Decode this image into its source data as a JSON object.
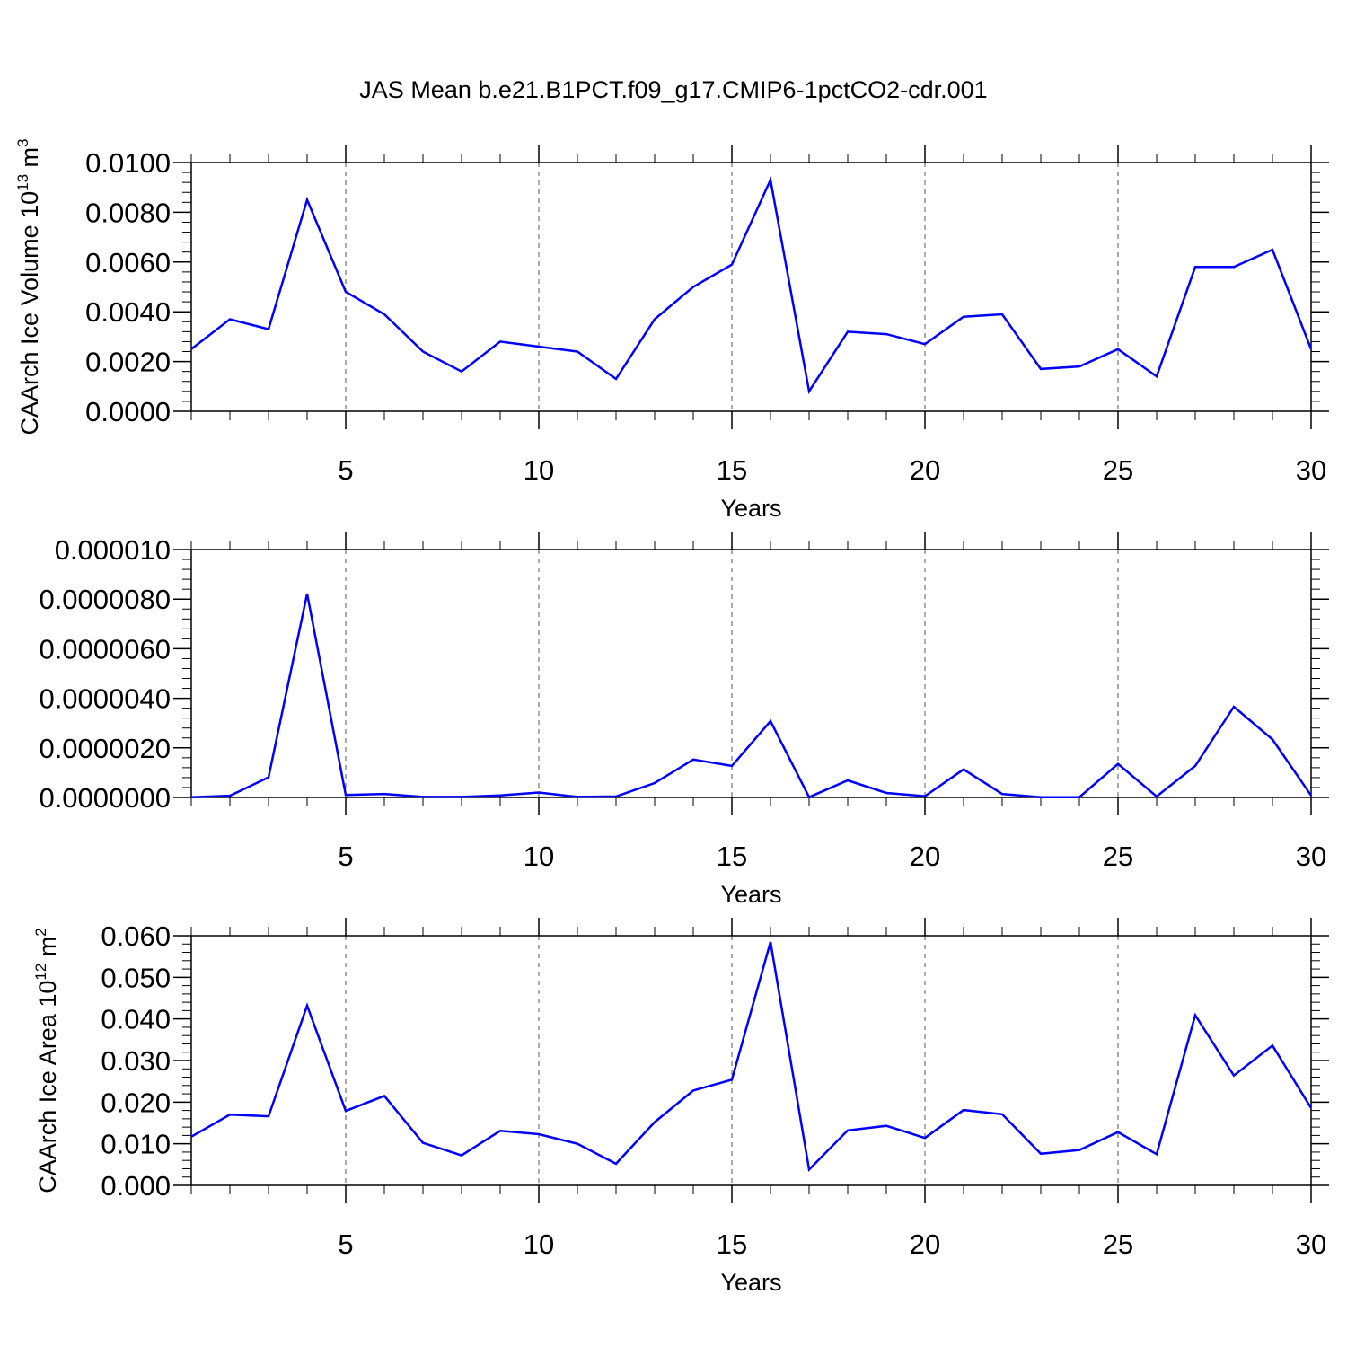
{
  "title": "JAS Mean b.e21.B1PCT.f09_g17.CMIP6-1pctCO2-cdr.001",
  "line_color": "#0000ff",
  "chart_data": [
    {
      "type": "line",
      "title": "JAS Mean b.e21.B1PCT.f09_g17.CMIP6-1pctCO2-cdr.001",
      "xlabel": "Years",
      "ylabel": "CAArch Ice Volume 10",
      "ylabel_exponent": "13",
      "ylabel_unit": "m",
      "ylabel_unit_exponent": "3",
      "xlim": [
        1,
        30
      ],
      "ylim": [
        0,
        0.01
      ],
      "x_ticks": [
        5,
        10,
        15,
        20,
        25,
        30
      ],
      "y_ticks": [
        "0.0000",
        "0.0020",
        "0.0040",
        "0.0060",
        "0.0080",
        "0.0100"
      ],
      "grid": "vertical dashed at x ticks",
      "x": [
        1,
        2,
        3,
        4,
        5,
        6,
        7,
        8,
        9,
        10,
        11,
        12,
        13,
        14,
        15,
        16,
        17,
        18,
        19,
        20,
        21,
        22,
        23,
        24,
        25,
        26,
        27,
        28,
        29,
        30
      ],
      "values": [
        0.0025,
        0.0037,
        0.0033,
        0.0085,
        0.0048,
        0.0039,
        0.0024,
        0.0016,
        0.0028,
        0.0026,
        0.0024,
        0.0013,
        0.0037,
        0.005,
        0.0059,
        0.0093,
        0.0008,
        0.0032,
        0.0031,
        0.0027,
        0.0038,
        0.0039,
        0.0017,
        0.0018,
        0.0025,
        0.0014,
        0.0058,
        0.0058,
        0.0065,
        0.0025
      ]
    },
    {
      "type": "line",
      "xlabel": "Years",
      "ylabel": "",
      "xlim": [
        1,
        30
      ],
      "ylim": [
        0,
        1e-05
      ],
      "x_ticks": [
        5,
        10,
        15,
        20,
        25,
        30
      ],
      "y_ticks": [
        "0.0000000",
        "0.0000020",
        "0.0000040",
        "0.0000060",
        "0.0000080",
        "0.000010"
      ],
      "grid": "vertical dashed at x ticks",
      "x": [
        1,
        2,
        3,
        4,
        5,
        6,
        7,
        8,
        9,
        10,
        11,
        12,
        13,
        14,
        15,
        16,
        17,
        18,
        19,
        20,
        21,
        22,
        23,
        24,
        25,
        26,
        27,
        28,
        29,
        30
      ],
      "values": [
        1e-08,
        7e-08,
        8.1e-07,
        8.22e-06,
        1e-07,
        1.4e-07,
        2e-08,
        2e-08,
        8e-08,
        2e-07,
        2e-08,
        4e-08,
        5.8e-07,
        1.53e-06,
        1.27e-06,
        3.08e-06,
        1e-08,
        6.9e-07,
        1.8e-07,
        5e-08,
        1.13e-06,
        1.4e-07,
        1e-08,
        1e-08,
        1.35e-06,
        4e-08,
        1.27e-06,
        3.66e-06,
        2.34e-06,
        8e-08
      ]
    },
    {
      "type": "line",
      "xlabel": "Years",
      "ylabel": "CAArch Ice Area 10",
      "ylabel_exponent": "12",
      "ylabel_unit": "m",
      "ylabel_unit_exponent": "2",
      "xlim": [
        1,
        30
      ],
      "ylim": [
        0,
        0.06
      ],
      "x_ticks": [
        5,
        10,
        15,
        20,
        25,
        30
      ],
      "y_ticks": [
        "0.000",
        "0.010",
        "0.020",
        "0.030",
        "0.040",
        "0.050",
        "0.060"
      ],
      "grid": "vertical dashed at x ticks",
      "x": [
        1,
        2,
        3,
        4,
        5,
        6,
        7,
        8,
        9,
        10,
        11,
        12,
        13,
        14,
        15,
        16,
        17,
        18,
        19,
        20,
        21,
        22,
        23,
        24,
        25,
        26,
        27,
        28,
        29,
        30
      ],
      "values": [
        0.0117,
        0.017,
        0.0166,
        0.0432,
        0.0179,
        0.0215,
        0.0102,
        0.0072,
        0.0131,
        0.0123,
        0.01,
        0.0052,
        0.0152,
        0.0228,
        0.0254,
        0.0585,
        0.0038,
        0.0132,
        0.0143,
        0.0114,
        0.0181,
        0.0171,
        0.0076,
        0.0085,
        0.0128,
        0.0075,
        0.0409,
        0.0264,
        0.0336,
        0.0186
      ]
    }
  ]
}
